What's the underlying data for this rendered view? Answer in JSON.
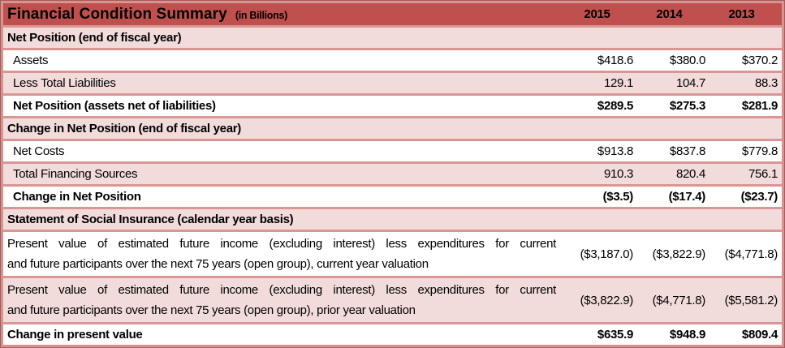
{
  "header": {
    "title": "Financial Condition Summary",
    "units": "(in Billions)",
    "years": [
      "2015",
      "2014",
      "2013"
    ]
  },
  "colors": {
    "header_bg": "#c0504d",
    "row_pink": "#f2dcdb",
    "divider": "#d99694",
    "outer_line": "#a85a56",
    "text": "#000000"
  },
  "sections": [
    {
      "heading": "Net Position (end of fiscal year)",
      "rows": [
        {
          "label": "Assets",
          "values": [
            "$418.6",
            "$380.0",
            "$370.2"
          ]
        },
        {
          "label": "Less Total Liabilities",
          "values": [
            "129.1",
            "104.7",
            "88.3"
          ]
        },
        {
          "label": "Net Position (assets net of liabilities)",
          "values": [
            "$289.5",
            "$275.3",
            "$281.9"
          ]
        }
      ]
    },
    {
      "heading": "Change in Net Position (end of fiscal year)",
      "rows": [
        {
          "label": "Net Costs",
          "values": [
            "$913.8",
            "$837.8",
            "$779.8"
          ]
        },
        {
          "label": "Total Financing Sources",
          "values": [
            "910.3",
            "820.4",
            "756.1"
          ]
        },
        {
          "label": "Change in Net Position",
          "values": [
            "($3.5)",
            "($17.4)",
            "($23.7)"
          ]
        }
      ]
    },
    {
      "heading": "Statement of Social Insurance (calendar year basis)",
      "rows": [
        {
          "label_line1": "Present value of estimated future income (excluding interest) less expenditures for current",
          "label_line2": "and future participants over the next 75 years (open group), current year valuation",
          "values": [
            "($3,187.0)",
            "($3,822.9)",
            "($4,771.8)"
          ]
        },
        {
          "label_line1": "Present value of estimated future income (excluding interest) less expenditures for current",
          "label_line2": "and future participants over the next 75 years (open group), prior year valuation",
          "values": [
            "($3,822.9)",
            "($4,771.8)",
            "($5,581.2)"
          ]
        },
        {
          "label": "Change in present value",
          "values": [
            "$635.9",
            "$948.9",
            "$809.4"
          ]
        }
      ]
    }
  ]
}
